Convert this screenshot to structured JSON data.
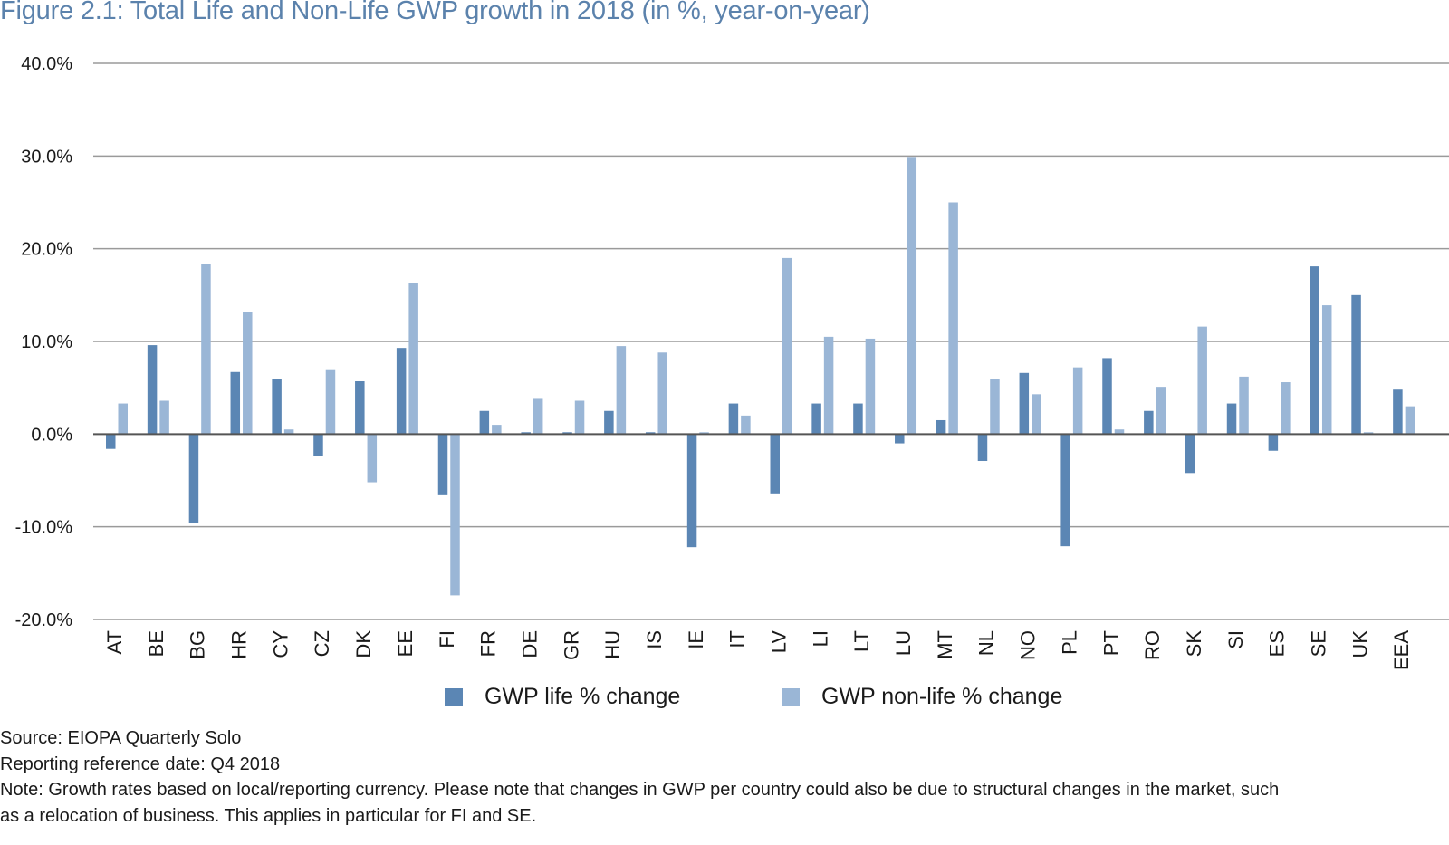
{
  "title": "Figure 2.1: Total Life and Non-Life GWP growth in 2018 (in %, year-on-year)",
  "colors": {
    "title": "#5b82ac",
    "life": "#5b86b4",
    "nonlife": "#9ab6d6",
    "grid": "#9a9a9a",
    "zero_line": "#555555"
  },
  "chart_data": {
    "type": "bar",
    "title": "Figure 2.1: Total Life and Non-Life GWP growth in 2018 (in %, year-on-year)",
    "xlabel": "",
    "ylabel": "",
    "ylim": [
      -20,
      40
    ],
    "yticks": [
      40,
      30,
      20,
      10,
      0,
      -10,
      -20
    ],
    "ytick_labels": [
      "40.0%",
      "30.0%",
      "20.0%",
      "10.0%",
      "0.0%",
      "-10.0%",
      "-20.0%"
    ],
    "grid": true,
    "legend_position": "bottom",
    "categories": [
      "AT",
      "BE",
      "BG",
      "HR",
      "CY",
      "CZ",
      "DK",
      "EE",
      "FI",
      "FR",
      "DE",
      "GR",
      "HU",
      "IS",
      "IE",
      "IT",
      "LV",
      "LI",
      "LT",
      "LU",
      "MT",
      "NL",
      "NO",
      "PL",
      "PT",
      "RO",
      "SK",
      "SI",
      "ES",
      "SE",
      "UK",
      "EEA"
    ],
    "series": [
      {
        "name": "GWP life % change",
        "values": [
          -1.6,
          9.6,
          -9.6,
          6.7,
          5.9,
          -2.4,
          5.7,
          9.3,
          -6.5,
          2.5,
          0.2,
          0.2,
          2.5,
          0.2,
          -12.2,
          3.3,
          -6.4,
          3.3,
          3.3,
          -1.0,
          1.5,
          -2.9,
          6.6,
          -12.1,
          8.2,
          2.5,
          -4.2,
          3.3,
          -1.8,
          18.1,
          15.0,
          4.8
        ]
      },
      {
        "name": "GWP non-life % change",
        "values": [
          3.3,
          3.6,
          18.4,
          13.2,
          0.5,
          7.0,
          -5.2,
          16.3,
          -17.4,
          1.0,
          3.8,
          3.6,
          9.5,
          8.8,
          0.2,
          2.0,
          19.0,
          10.5,
          10.3,
          29.9,
          25.0,
          5.9,
          4.3,
          7.2,
          0.5,
          5.1,
          11.6,
          6.2,
          5.6,
          13.9,
          0.2,
          3.0
        ]
      }
    ]
  },
  "legend": [
    {
      "label": "GWP life % change"
    },
    {
      "label": "GWP non-life % change"
    }
  ],
  "notes": {
    "source": "Source: EIOPA Quarterly Solo",
    "reference_date": "Reporting reference date: Q4 2018",
    "note_line1": "Note: Growth rates based on local/reporting currency. Please note that changes in GWP per country could also be due to structural changes in the market, such",
    "note_line2": "as a relocation of business. This applies in particular for FI and SE."
  }
}
